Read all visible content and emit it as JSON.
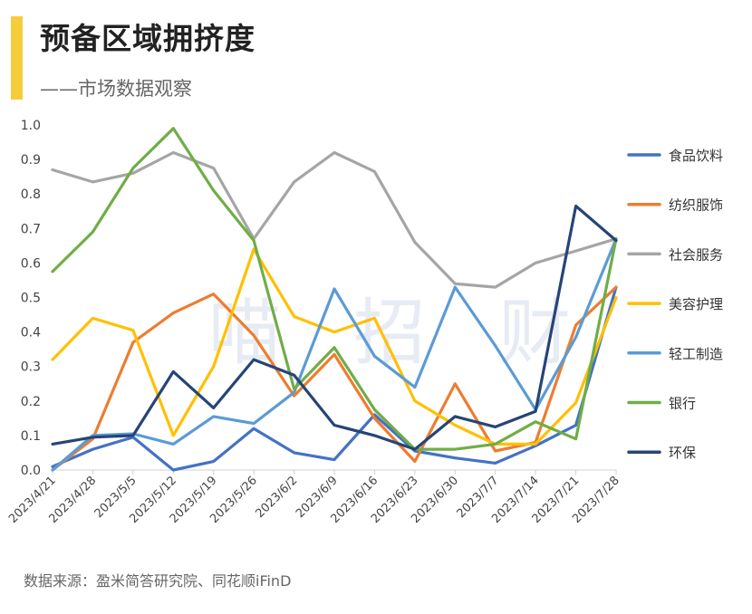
{
  "header": {
    "title": "预备区域拥挤度",
    "subtitle": "——市场数据观察",
    "accent_color": "#f5cd3a"
  },
  "footer": {
    "source": "数据来源：盈米简答研究院、同花顺iFinD"
  },
  "watermark": {
    "text": [
      "喵",
      "招",
      "财"
    ]
  },
  "chart_data": {
    "type": "line",
    "title": "",
    "xlabel": "",
    "ylabel": "",
    "ylim": [
      0,
      1.0
    ],
    "yticks": [
      0.0,
      0.1,
      0.2,
      0.3,
      0.4,
      0.5,
      0.6,
      0.7,
      0.8,
      0.9,
      1.0
    ],
    "ytick_labels": [
      "0.0",
      "0.1",
      "0.2",
      "0.3",
      "0.4",
      "0.5",
      "0.6",
      "0.7",
      "0.8",
      "0.9",
      "1.0"
    ],
    "grid": false,
    "legend_position": "right",
    "categories": [
      "2023/4/21",
      "2023/4/28",
      "2023/5/5",
      "2023/5/12",
      "2023/5/19",
      "2023/5/26",
      "2023/6/2",
      "2023/6/9",
      "2023/6/16",
      "2023/6/23",
      "2023/6/30",
      "2023/7/7",
      "2023/7/14",
      "2023/7/21",
      "2023/7/28"
    ],
    "series": [
      {
        "name": "食品饮料",
        "color": "#4472c4",
        "values": [
          0.01,
          0.06,
          0.095,
          0.0,
          0.025,
          0.12,
          0.05,
          0.03,
          0.16,
          0.055,
          0.035,
          0.02,
          0.07,
          0.13,
          0.53
        ]
      },
      {
        "name": "纺织服饰",
        "color": "#ed7d31",
        "values": [
          0.0,
          0.09,
          0.37,
          0.455,
          0.51,
          0.39,
          0.215,
          0.335,
          0.15,
          0.025,
          0.25,
          0.055,
          0.08,
          0.42,
          0.53
        ]
      },
      {
        "name": "社会服务",
        "color": "#a5a5a5",
        "values": [
          0.87,
          0.835,
          0.86,
          0.92,
          0.875,
          0.67,
          0.835,
          0.92,
          0.865,
          0.66,
          0.54,
          0.53,
          0.6,
          0.635,
          0.67
        ]
      },
      {
        "name": "美容护理",
        "color": "#ffc000",
        "values": [
          0.32,
          0.44,
          0.405,
          0.1,
          0.3,
          0.64,
          0.445,
          0.4,
          0.44,
          0.2,
          0.13,
          0.075,
          0.075,
          0.195,
          0.5
        ]
      },
      {
        "name": "轻工制造",
        "color": "#5b9bd5",
        "values": [
          0.0,
          0.1,
          0.105,
          0.075,
          0.155,
          0.135,
          0.225,
          0.525,
          0.33,
          0.24,
          0.53,
          0.36,
          0.175,
          0.385,
          0.67
        ]
      },
      {
        "name": "银行",
        "color": "#70ad47",
        "values": [
          0.575,
          0.69,
          0.875,
          0.99,
          0.81,
          0.665,
          0.235,
          0.355,
          0.175,
          0.06,
          0.06,
          0.075,
          0.14,
          0.09,
          0.67
        ]
      },
      {
        "name": "环保",
        "color": "#264478",
        "values": [
          0.075,
          0.095,
          0.1,
          0.285,
          0.18,
          0.32,
          0.275,
          0.13,
          0.1,
          0.06,
          0.155,
          0.125,
          0.17,
          0.765,
          0.665
        ]
      }
    ]
  }
}
